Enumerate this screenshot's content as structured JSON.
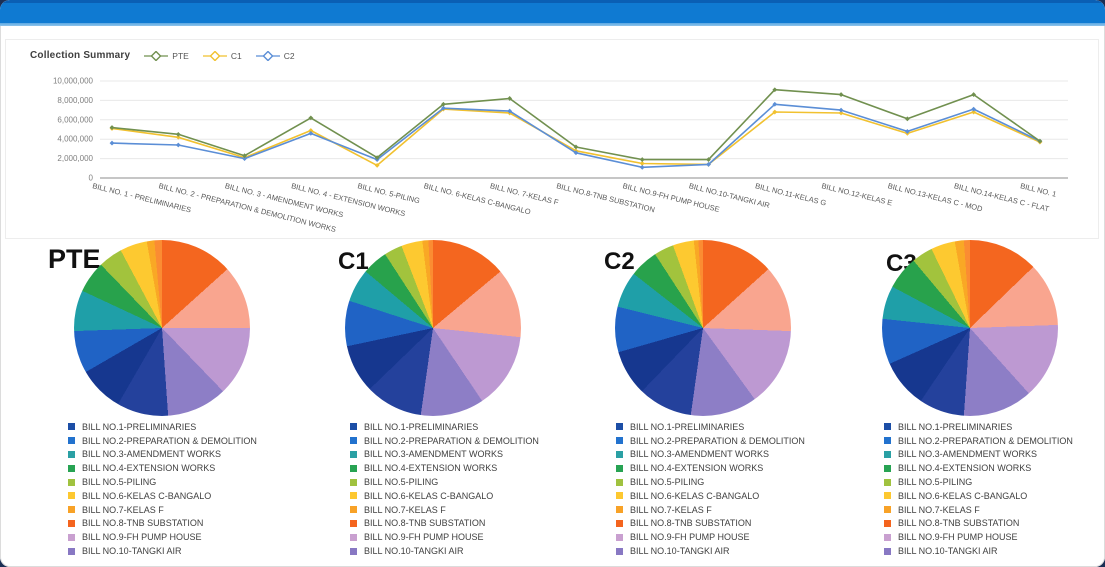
{
  "title": "Collection Summary",
  "top_bar": {
    "color": "#0f7ad2"
  },
  "palette": {
    "orange": "#f4661f",
    "salmon": "#f9a58f",
    "lavender": "#bd99d2",
    "purple": "#8d7ec6",
    "navy": "#24419c",
    "darknavy": "#16378f",
    "blue": "#2063c5",
    "teal": "#1f9fa8",
    "green": "#28a24c",
    "lightgreen": "#a2c33d",
    "yellow": "#fdc930",
    "amber": "#f9a825",
    "lightorange": "#fb8c32"
  },
  "chart_data": [
    {
      "type": "line",
      "title": "Collection Summary",
      "legend_position": "top",
      "grid": true,
      "ylim": [
        0,
        10000000
      ],
      "y_tick_labels": [
        "0",
        "2,000,000",
        "4,000,000",
        "6,000,000",
        "8,000,000",
        "10,000,000"
      ],
      "categories": [
        "BILL NO. 1 - PRELIMINARIES",
        "BILL NO. 2 - PREPARATION & DEMOLITION WORKS",
        "BILL NO. 3 - AMENDMENT WORKS",
        "BILL NO. 4 - EXTENSION WORKS",
        "BILL NO. 5-PILING",
        "BILL NO. 6-KELAS C-BANGALO",
        "BILL NO. 7-KELAS F",
        "BILL NO.8-TNB SUBSTATION",
        "BILL NO.9-FH PUMP HOUSE",
        "BILL NO.10-TANGKI AIR",
        "BILL NO.11-KELAS G",
        "BILL NO.12-KELAS E",
        "BILL NO.13-KELAS C - MOD",
        "BILL NO.14-KELAS C - FLAT",
        "BILL NO. 1"
      ],
      "series": [
        {
          "name": "PTE",
          "color": "#71904f",
          "values": [
            5200000,
            4500000,
            2300000,
            6200000,
            2100000,
            7600000,
            8200000,
            3200000,
            1900000,
            1900000,
            9100000,
            8600000,
            6100000,
            8600000,
            3800000
          ]
        },
        {
          "name": "C1",
          "color": "#f1c12f",
          "values": [
            5100000,
            4200000,
            2100000,
            4900000,
            1300000,
            7100000,
            6700000,
            2800000,
            1500000,
            1400000,
            6800000,
            6700000,
            4600000,
            6800000,
            3700000
          ]
        },
        {
          "name": "C2",
          "color": "#5b8ed6",
          "values": [
            3600000,
            3400000,
            2000000,
            4600000,
            1900000,
            7200000,
            6900000,
            2600000,
            1100000,
            1400000,
            7600000,
            7000000,
            4800000,
            7100000,
            3800000
          ]
        }
      ]
    },
    {
      "type": "pie",
      "title": "PTE",
      "slices": [
        {
          "color": "orange",
          "deg": 48
        },
        {
          "color": "salmon",
          "deg": 42
        },
        {
          "color": "lavender",
          "deg": 46
        },
        {
          "color": "purple",
          "deg": 40
        },
        {
          "color": "navy",
          "deg": 34
        },
        {
          "color": "darknavy",
          "deg": 30
        },
        {
          "color": "blue",
          "deg": 28
        },
        {
          "color": "teal",
          "deg": 27
        },
        {
          "color": "green",
          "deg": 21
        },
        {
          "color": "lightgreen",
          "deg": 16
        },
        {
          "color": "yellow",
          "deg": 18
        },
        {
          "color": "amber",
          "deg": 5
        },
        {
          "color": "lightorange",
          "deg": 5
        }
      ]
    },
    {
      "type": "pie",
      "title": "C1",
      "slices": [
        {
          "color": "orange",
          "deg": 50
        },
        {
          "color": "salmon",
          "deg": 46
        },
        {
          "color": "lavender",
          "deg": 50
        },
        {
          "color": "purple",
          "deg": 42
        },
        {
          "color": "navy",
          "deg": 38
        },
        {
          "color": "darknavy",
          "deg": 32
        },
        {
          "color": "blue",
          "deg": 30
        },
        {
          "color": "teal",
          "deg": 22
        },
        {
          "color": "green",
          "deg": 17
        },
        {
          "color": "lightgreen",
          "deg": 12
        },
        {
          "color": "yellow",
          "deg": 14
        },
        {
          "color": "amber",
          "deg": 4
        },
        {
          "color": "lightorange",
          "deg": 3
        }
      ]
    },
    {
      "type": "pie",
      "title": "C2",
      "slices": [
        {
          "color": "orange",
          "deg": 48
        },
        {
          "color": "salmon",
          "deg": 44
        },
        {
          "color": "lavender",
          "deg": 52
        },
        {
          "color": "purple",
          "deg": 44
        },
        {
          "color": "navy",
          "deg": 36
        },
        {
          "color": "darknavy",
          "deg": 30
        },
        {
          "color": "blue",
          "deg": 30
        },
        {
          "color": "teal",
          "deg": 24
        },
        {
          "color": "green",
          "deg": 19
        },
        {
          "color": "lightgreen",
          "deg": 13
        },
        {
          "color": "yellow",
          "deg": 14
        },
        {
          "color": "amber",
          "deg": 3
        },
        {
          "color": "lightorange",
          "deg": 3
        }
      ]
    },
    {
      "type": "pie",
      "title": "C3",
      "slices": [
        {
          "color": "orange",
          "deg": 46
        },
        {
          "color": "salmon",
          "deg": 42
        },
        {
          "color": "lavender",
          "deg": 50
        },
        {
          "color": "purple",
          "deg": 46
        },
        {
          "color": "navy",
          "deg": 30
        },
        {
          "color": "darknavy",
          "deg": 32
        },
        {
          "color": "blue",
          "deg": 30
        },
        {
          "color": "teal",
          "deg": 22
        },
        {
          "color": "green",
          "deg": 22
        },
        {
          "color": "lightgreen",
          "deg": 14
        },
        {
          "color": "yellow",
          "deg": 16
        },
        {
          "color": "amber",
          "deg": 6
        },
        {
          "color": "lightorange",
          "deg": 4
        }
      ]
    }
  ],
  "pie_legend": [
    {
      "label": "BILL NO.1-PRELIMINARIES",
      "color": "#1c4ea6"
    },
    {
      "label": "BILL NO.2-PREPARATION & DEMOLITION",
      "color": "#2272ce"
    },
    {
      "label": "BILL NO.3-AMENDMENT WORKS",
      "color": "#2aa0a4"
    },
    {
      "label": "BILL NO.4-EXTENSION WORKS",
      "color": "#27a353"
    },
    {
      "label": "BILL NO.5-PILING",
      "color": "#a0c23f"
    },
    {
      "label": "BILL NO.6-KELAS C-BANGALO",
      "color": "#fdc830"
    },
    {
      "label": "BILL NO.7-KELAS F",
      "color": "#f8a227"
    },
    {
      "label": "BILL NO.8-TNB SUBSTATION",
      "color": "#f4641e"
    },
    {
      "label": "BILL NO.9-FH PUMP HOUSE",
      "color": "#c9a0d0"
    },
    {
      "label": "BILL NO.10-TANGKI AIR",
      "color": "#8878c3"
    }
  ]
}
